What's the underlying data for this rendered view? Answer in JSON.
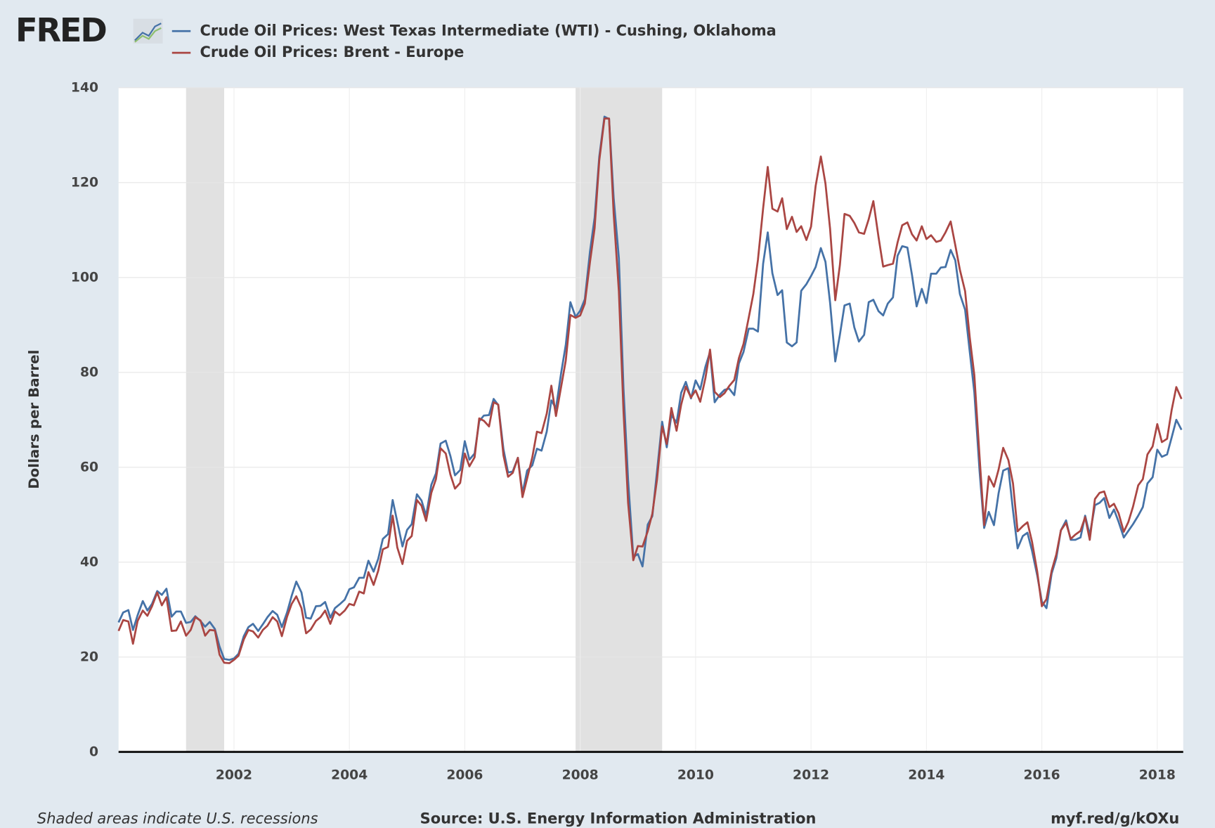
{
  "chart_data": {
    "type": "line",
    "logo": "FRED",
    "ylabel": "Dollars per Barrel",
    "note": "Shaded areas indicate U.S. recessions",
    "source": "Source: U.S. Energy Information Administration",
    "link": "myf.red/g/kOXu",
    "xlim": [
      2000,
      2018.45
    ],
    "xticks": [
      2002,
      2004,
      2006,
      2008,
      2010,
      2012,
      2014,
      2016,
      2018
    ],
    "ylim": [
      0,
      140
    ],
    "yticks": [
      0,
      20,
      40,
      60,
      80,
      100,
      120,
      140
    ],
    "grid": true,
    "recessions": [
      [
        2001.17,
        2001.83
      ],
      [
        2007.92,
        2009.42
      ]
    ],
    "x": [
      2000,
      2000.08,
      2000.17,
      2000.25,
      2000.33,
      2000.42,
      2000.5,
      2000.58,
      2000.67,
      2000.75,
      2000.83,
      2000.92,
      2001,
      2001.08,
      2001.17,
      2001.25,
      2001.33,
      2001.42,
      2001.5,
      2001.58,
      2001.67,
      2001.75,
      2001.83,
      2001.92,
      2002,
      2002.08,
      2002.17,
      2002.25,
      2002.33,
      2002.42,
      2002.5,
      2002.58,
      2002.67,
      2002.75,
      2002.83,
      2002.92,
      2003,
      2003.08,
      2003.17,
      2003.25,
      2003.33,
      2003.42,
      2003.5,
      2003.58,
      2003.67,
      2003.75,
      2003.83,
      2003.92,
      2004,
      2004.08,
      2004.17,
      2004.25,
      2004.33,
      2004.42,
      2004.5,
      2004.58,
      2004.67,
      2004.75,
      2004.83,
      2004.92,
      2005,
      2005.08,
      2005.17,
      2005.25,
      2005.33,
      2005.42,
      2005.5,
      2005.58,
      2005.67,
      2005.75,
      2005.83,
      2005.92,
      2006,
      2006.08,
      2006.17,
      2006.25,
      2006.33,
      2006.42,
      2006.5,
      2006.58,
      2006.67,
      2006.75,
      2006.83,
      2006.92,
      2007,
      2007.08,
      2007.17,
      2007.25,
      2007.33,
      2007.42,
      2007.5,
      2007.58,
      2007.67,
      2007.75,
      2007.83,
      2007.92,
      2008,
      2008.08,
      2008.17,
      2008.25,
      2008.33,
      2008.42,
      2008.5,
      2008.58,
      2008.67,
      2008.75,
      2008.83,
      2008.92,
      2009,
      2009.08,
      2009.17,
      2009.25,
      2009.33,
      2009.42,
      2009.5,
      2009.58,
      2009.67,
      2009.75,
      2009.83,
      2009.92,
      2010,
      2010.08,
      2010.17,
      2010.25,
      2010.33,
      2010.42,
      2010.5,
      2010.58,
      2010.67,
      2010.75,
      2010.83,
      2010.92,
      2011,
      2011.08,
      2011.17,
      2011.25,
      2011.33,
      2011.42,
      2011.5,
      2011.58,
      2011.67,
      2011.75,
      2011.83,
      2011.92,
      2012,
      2012.08,
      2012.17,
      2012.25,
      2012.33,
      2012.42,
      2012.5,
      2012.58,
      2012.67,
      2012.75,
      2012.83,
      2012.92,
      2013,
      2013.08,
      2013.17,
      2013.25,
      2013.33,
      2013.42,
      2013.5,
      2013.58,
      2013.67,
      2013.75,
      2013.83,
      2013.92,
      2014,
      2014.08,
      2014.17,
      2014.25,
      2014.33,
      2014.42,
      2014.5,
      2014.58,
      2014.67,
      2014.75,
      2014.83,
      2014.92,
      2015,
      2015.08,
      2015.17,
      2015.25,
      2015.33,
      2015.42,
      2015.5,
      2015.58,
      2015.67,
      2015.75,
      2015.83,
      2015.92,
      2016,
      2016.08,
      2016.17,
      2016.25,
      2016.33,
      2016.42,
      2016.5,
      2016.58,
      2016.67,
      2016.75,
      2016.83,
      2016.92,
      2017,
      2017.08,
      2017.17,
      2017.25,
      2017.33,
      2017.42,
      2017.5,
      2017.58,
      2017.67,
      2017.75,
      2017.83,
      2017.92,
      2018,
      2018.08,
      2018.17,
      2018.25,
      2018.33,
      2018.42
    ],
    "series": [
      {
        "name": "Crude Oil Prices: West Texas Intermediate (WTI) - Cushing, Oklahoma",
        "color": "#4572a7",
        "values": [
          27.3,
          29.4,
          29.9,
          25.7,
          28.8,
          31.8,
          29.8,
          31.2,
          33.9,
          33.1,
          34.4,
          28.5,
          29.6,
          29.6,
          27.2,
          27.4,
          28.6,
          27.6,
          26.4,
          27.4,
          25.9,
          22.2,
          19.6,
          19.4,
          19.7,
          20.7,
          24.4,
          26.3,
          27.0,
          25.5,
          26.9,
          28.4,
          29.7,
          28.9,
          26.3,
          29.4,
          32.9,
          35.9,
          33.6,
          28.3,
          28.1,
          30.7,
          30.8,
          31.6,
          28.3,
          30.3,
          31.1,
          32.1,
          34.3,
          34.7,
          36.7,
          36.7,
          40.3,
          38.0,
          40.7,
          44.9,
          45.9,
          53.1,
          48.5,
          43.3,
          46.8,
          48.0,
          54.3,
          53.0,
          49.8,
          56.3,
          58.7,
          65.0,
          65.6,
          62.4,
          58.3,
          59.4,
          65.5,
          61.6,
          62.9,
          69.7,
          70.9,
          71.0,
          74.4,
          73.1,
          63.8,
          58.9,
          59.1,
          62.0,
          54.5,
          59.3,
          60.4,
          63.9,
          63.5,
          67.5,
          74.1,
          72.4,
          79.9,
          85.8,
          94.8,
          91.7,
          93.0,
          95.4,
          105.5,
          112.6,
          125.4,
          133.9,
          133.4,
          116.7,
          104.1,
          76.6,
          57.3,
          41.1,
          41.7,
          39.1,
          47.9,
          49.7,
          59.0,
          69.6,
          64.2,
          71.0,
          69.4,
          75.7,
          78.0,
          74.5,
          78.3,
          76.4,
          81.2,
          84.3,
          73.7,
          75.3,
          76.3,
          76.6,
          75.2,
          81.9,
          84.3,
          89.2,
          89.2,
          88.6,
          102.9,
          109.5,
          100.9,
          96.3,
          97.3,
          86.3,
          85.5,
          86.3,
          97.2,
          98.6,
          100.3,
          102.2,
          106.2,
          103.3,
          94.7,
          82.3,
          87.9,
          94.1,
          94.5,
          89.5,
          86.5,
          87.9,
          94.8,
          95.3,
          92.9,
          92.0,
          94.5,
          95.8,
          104.6,
          106.6,
          106.3,
          100.5,
          93.9,
          97.6,
          94.6,
          100.8,
          100.8,
          102.1,
          102.2,
          105.8,
          103.6,
          96.5,
          93.2,
          84.4,
          75.8,
          59.3,
          47.2,
          50.6,
          47.8,
          54.5,
          59.3,
          59.8,
          50.9,
          42.9,
          45.5,
          46.2,
          42.4,
          37.2,
          31.7,
          30.3,
          37.6,
          40.8,
          46.7,
          48.8,
          44.7,
          44.7,
          45.2,
          49.8,
          45.7,
          52.0,
          52.5,
          53.5,
          49.3,
          51.1,
          48.5,
          45.2,
          46.6,
          48.0,
          49.8,
          51.6,
          56.6,
          57.9,
          63.7,
          62.2,
          62.7,
          66.3,
          70.0,
          67.9
        ]
      },
      {
        "name": "Crude Oil Prices: Brent - Europe",
        "color": "#aa4643",
        "values": [
          25.5,
          27.8,
          27.5,
          22.8,
          27.6,
          29.8,
          28.7,
          30.7,
          33.6,
          30.9,
          32.6,
          25.5,
          25.6,
          27.5,
          24.5,
          25.7,
          28.4,
          27.7,
          24.5,
          25.7,
          25.6,
          20.5,
          18.8,
          18.7,
          19.4,
          20.3,
          23.7,
          25.7,
          25.4,
          24.1,
          25.7,
          26.6,
          28.4,
          27.5,
          24.4,
          28.5,
          31.2,
          32.8,
          30.3,
          25.0,
          25.8,
          27.6,
          28.4,
          29.8,
          27.0,
          29.6,
          28.8,
          29.8,
          31.2,
          30.9,
          33.8,
          33.4,
          37.9,
          35.2,
          38.2,
          42.7,
          43.2,
          49.8,
          43.1,
          39.6,
          44.5,
          45.5,
          53.1,
          51.9,
          48.7,
          54.6,
          57.5,
          64.0,
          62.9,
          58.5,
          55.5,
          56.7,
          62.9,
          60.2,
          62.1,
          70.3,
          69.8,
          68.6,
          73.7,
          73.2,
          62.5,
          58.0,
          58.8,
          62.0,
          53.7,
          57.6,
          62.1,
          67.5,
          67.2,
          71.3,
          77.2,
          70.8,
          77.0,
          82.5,
          92.1,
          91.5,
          92.0,
          94.5,
          103.3,
          110.4,
          124.6,
          133.5,
          133.5,
          113.4,
          97.1,
          71.9,
          52.5,
          40.4,
          43.4,
          43.3,
          46.5,
          50.2,
          57.3,
          68.6,
          64.9,
          72.5,
          67.7,
          73.2,
          77.0,
          74.7,
          76.2,
          73.8,
          78.8,
          84.8,
          75.9,
          74.8,
          75.6,
          77.1,
          78.4,
          83.0,
          86.0,
          91.5,
          96.5,
          103.7,
          114.6,
          123.3,
          114.5,
          113.9,
          116.7,
          110.2,
          112.8,
          109.6,
          110.8,
          107.9,
          110.7,
          119.3,
          125.5,
          119.8,
          110.3,
          95.2,
          102.6,
          113.4,
          113.0,
          111.5,
          109.5,
          109.2,
          112.3,
          116.1,
          108.5,
          102.3,
          102.6,
          102.9,
          107.4,
          111.0,
          111.6,
          109.1,
          107.8,
          110.8,
          108.1,
          108.9,
          107.5,
          107.8,
          109.5,
          111.8,
          106.8,
          101.6,
          97.1,
          87.4,
          79.4,
          62.3,
          47.8,
          58.1,
          55.9,
          59.5,
          64.1,
          61.5,
          56.6,
          46.5,
          47.6,
          48.4,
          44.3,
          38.0,
          30.7,
          32.2,
          38.2,
          41.6,
          46.7,
          48.3,
          44.9,
          45.8,
          46.6,
          49.5,
          44.7,
          53.3,
          54.6,
          54.9,
          51.6,
          52.3,
          50.3,
          46.4,
          48.5,
          51.7,
          56.2,
          57.5,
          62.7,
          64.4,
          69.1,
          65.3,
          66.0,
          72.1,
          76.9,
          74.4
        ]
      }
    ]
  }
}
